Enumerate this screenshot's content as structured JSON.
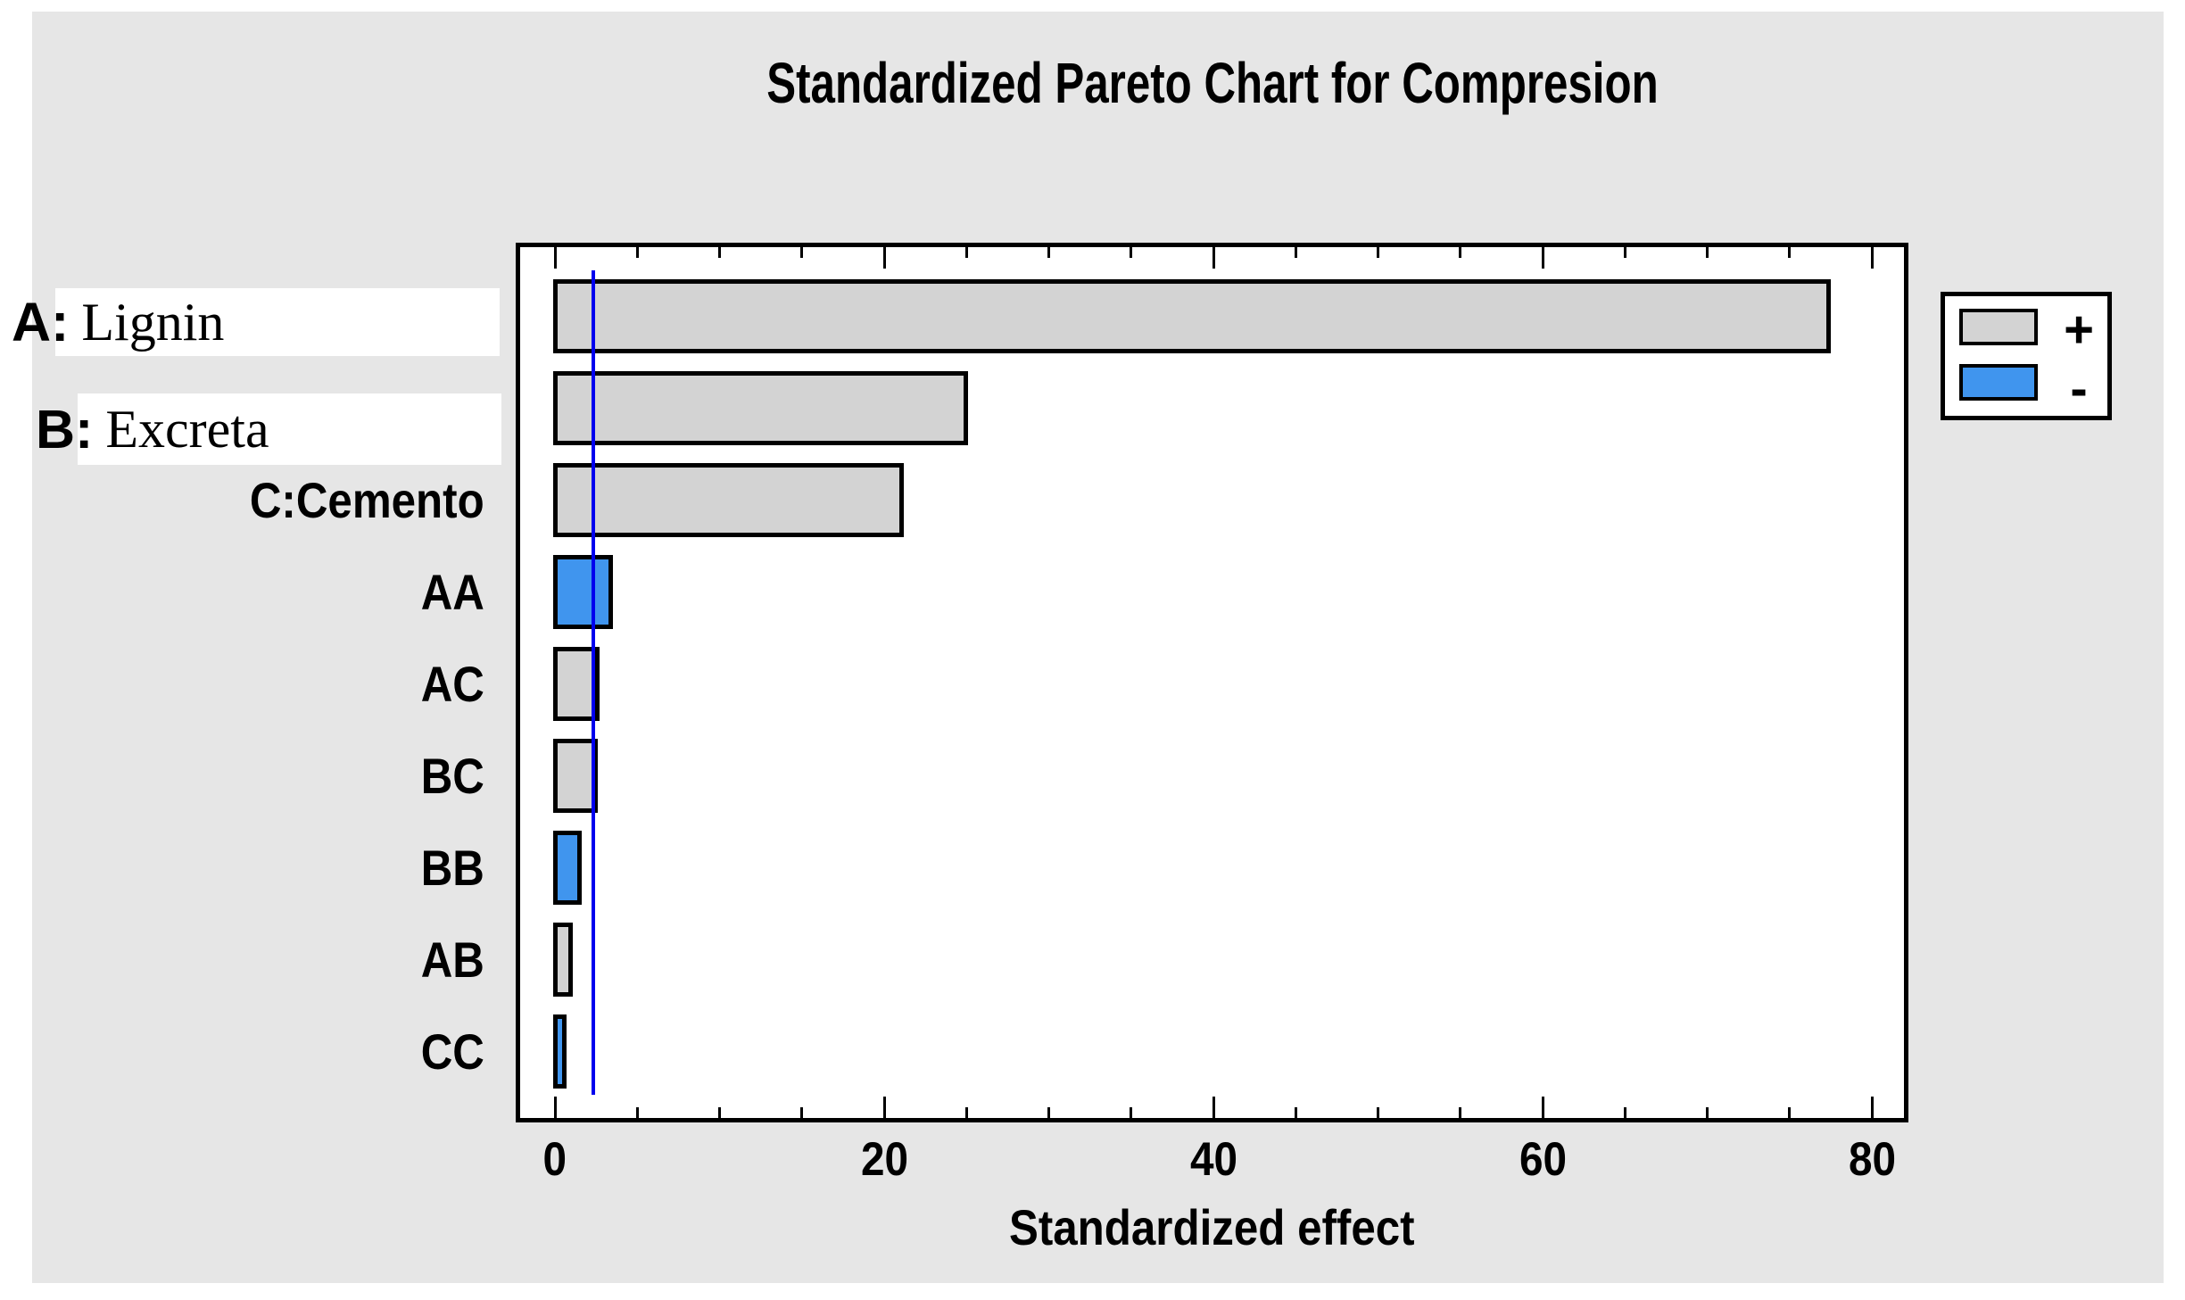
{
  "chart_data": {
    "type": "bar",
    "orientation": "horizontal-pareto",
    "title": "Standardized Pareto Chart for Compresion",
    "xlabel": "Standardized effect",
    "xlim": [
      0,
      80
    ],
    "x_major_ticks": [
      0,
      20,
      40,
      60,
      80
    ],
    "x_major_tick_labels": [
      "0",
      "20",
      "40",
      "60",
      "80"
    ],
    "x_minor_tick_step": 5,
    "grid": "off",
    "reference_line_x": 2.33,
    "categories": [
      "A: Lignin",
      "B: Excreta",
      "C:Cemento",
      "AA",
      "AC",
      "BC",
      "BB",
      "AB",
      "CC"
    ],
    "values": [
      77.5,
      25.1,
      21.2,
      3.5,
      2.7,
      2.6,
      1.6,
      1.1,
      0.7
    ],
    "signs": [
      "+",
      "+",
      "+",
      "-",
      "+",
      "+",
      "-",
      "+",
      "-"
    ],
    "rows": [
      {
        "label": "A: Lignin",
        "label_prefix": "A:",
        "label_name": "Lignin",
        "boxed": true,
        "value": 77.5,
        "sign": "+"
      },
      {
        "label": "B: Excreta",
        "label_prefix": "B:",
        "label_name": "Excreta",
        "boxed": true,
        "value": 25.1,
        "sign": "+"
      },
      {
        "label": "C:Cemento",
        "boxed": false,
        "value": 21.2,
        "sign": "+"
      },
      {
        "label": "AA",
        "boxed": false,
        "value": 3.5,
        "sign": "-"
      },
      {
        "label": "AC",
        "boxed": false,
        "value": 2.7,
        "sign": "+"
      },
      {
        "label": "BC",
        "boxed": false,
        "value": 2.6,
        "sign": "+"
      },
      {
        "label": "BB",
        "boxed": false,
        "value": 1.6,
        "sign": "-"
      },
      {
        "label": "AB",
        "boxed": false,
        "value": 1.1,
        "sign": "+"
      },
      {
        "label": "CC",
        "boxed": false,
        "value": 0.7,
        "sign": "-"
      }
    ],
    "legend": {
      "position": "right",
      "entries": [
        {
          "label": "+",
          "color": "#d3d3d3"
        },
        {
          "label": "-",
          "color": "#4095ee"
        }
      ]
    }
  },
  "colors": {
    "page_bg": "#ffffff",
    "canvas_bg": "#e6e6e6",
    "plot_bg": "#ffffff",
    "positive_bar": "#d3d3d3",
    "negative_bar": "#4095ee",
    "reference_line": "#0000ee",
    "outline": "#000000"
  }
}
